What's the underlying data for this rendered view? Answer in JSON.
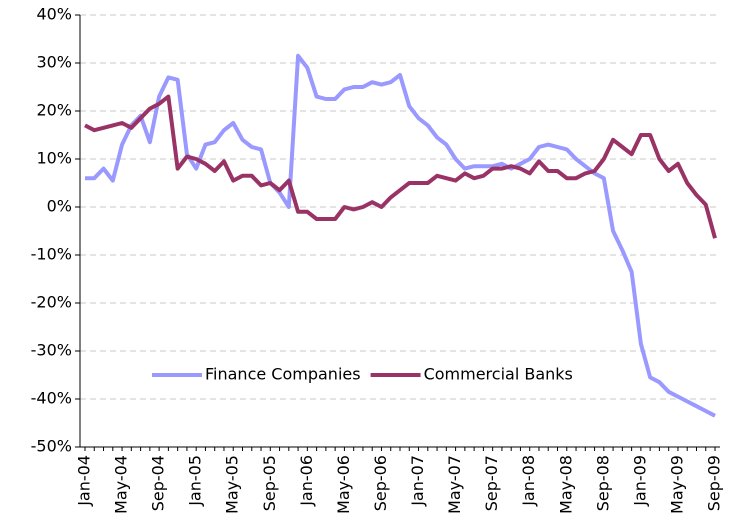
{
  "chart_data": {
    "type": "line",
    "categories": [
      "Jan-04",
      null,
      null,
      null,
      "May-04",
      null,
      null,
      null,
      "Sep-04",
      null,
      null,
      null,
      "Jan-05",
      null,
      null,
      null,
      "May-05",
      null,
      null,
      null,
      "Sep-05",
      null,
      null,
      null,
      "Jan-06",
      null,
      null,
      null,
      "May-06",
      null,
      null,
      null,
      "Sep-06",
      null,
      null,
      null,
      "Jan-07",
      null,
      null,
      null,
      "May-07",
      null,
      null,
      null,
      "Sep-07",
      null,
      null,
      null,
      "Jan-08",
      null,
      null,
      null,
      "May-08",
      null,
      null,
      null,
      "Sep-08",
      null,
      null,
      null,
      "Jan-09",
      null,
      null,
      null,
      "May-09",
      null,
      null,
      null,
      "Sep-09"
    ],
    "series": [
      {
        "name": "Finance Companies",
        "color": "#9999ff",
        "values": [
          6,
          6,
          8,
          5.5,
          13,
          17,
          19,
          13.5,
          23,
          27,
          26.5,
          11,
          8,
          13,
          13.5,
          16,
          17.5,
          14,
          12.5,
          12,
          5,
          3,
          0,
          31.5,
          29,
          23,
          22.5,
          22.5,
          24.5,
          25,
          25,
          26,
          25.5,
          26,
          27.5,
          21,
          18.5,
          17,
          14.5,
          13,
          10,
          8,
          8.5,
          8.5,
          8.5,
          9,
          8,
          9,
          10,
          12.5,
          13,
          12.5,
          12,
          10,
          8.5,
          7,
          6,
          -5,
          -9,
          -13.5,
          -28.5,
          -35.5,
          -36.5,
          -38.5,
          -39.5,
          -40.5,
          -41.5,
          -42.5,
          -43.5
        ]
      },
      {
        "name": "Commercial Banks",
        "color": "#993366",
        "values": [
          17,
          16,
          16.5,
          17,
          17.5,
          16.5,
          18.5,
          20.5,
          21.5,
          23,
          8,
          10.5,
          10,
          9,
          7.5,
          9.5,
          5.5,
          6.5,
          6.5,
          4.5,
          5,
          3.5,
          5.5,
          -1,
          -1,
          -2.5,
          -2.5,
          -2.5,
          0,
          -0.5,
          0,
          1,
          0,
          2,
          3.5,
          5,
          5,
          5,
          6.5,
          6,
          5.5,
          7,
          6,
          6.5,
          8,
          8,
          8.5,
          8,
          7,
          9.5,
          7.5,
          7.5,
          6,
          6,
          7,
          7.5,
          10,
          14,
          12.5,
          11,
          15,
          15,
          10,
          7.5,
          9,
          5,
          2.5,
          0.5,
          -6.5
        ]
      }
    ],
    "ylim": [
      -50,
      40
    ],
    "yticks": [
      {
        "value": -50,
        "label": "-50%"
      },
      {
        "value": -40,
        "label": "-40%"
      },
      {
        "value": -30,
        "label": "-30%"
      },
      {
        "value": -20,
        "label": "-20%"
      },
      {
        "value": -10,
        "label": "-10%"
      },
      {
        "value": 0,
        "label": "0%"
      },
      {
        "value": 10,
        "label": "10%"
      },
      {
        "value": 20,
        "label": "20%"
      },
      {
        "value": 30,
        "label": "30%"
      },
      {
        "value": 40,
        "label": "40%"
      }
    ],
    "grid": true
  }
}
